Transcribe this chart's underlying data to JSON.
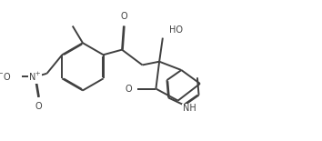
{
  "line_color": "#404040",
  "bg_color": "#ffffff",
  "line_width": 1.4,
  "dbo": 0.008,
  "font_size": 7.0,
  "figsize": [
    3.54,
    1.55
  ],
  "dpi": 100,
  "xlim": [
    0,
    3.54
  ],
  "ylim": [
    0,
    1.55
  ]
}
